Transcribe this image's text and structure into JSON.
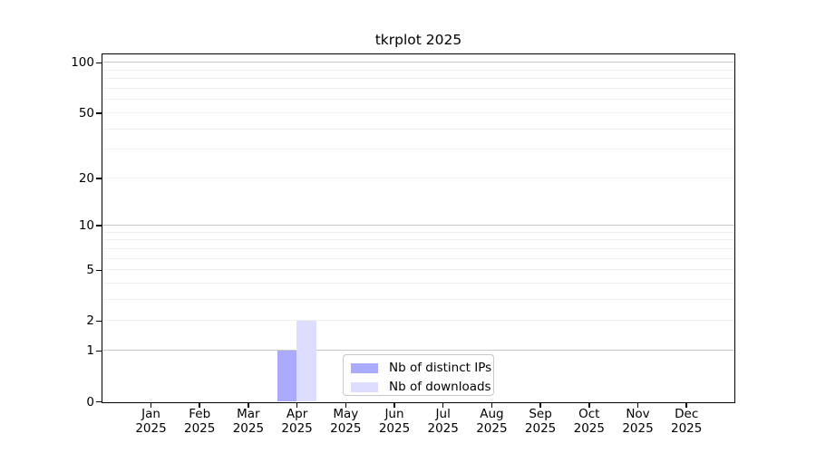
{
  "figure": {
    "title": "tkrplot 2025"
  },
  "chart_data": {
    "type": "bar",
    "title": "tkrplot 2025",
    "xlabel": "",
    "ylabel": "",
    "year_label": "2025",
    "categories": [
      "Jan",
      "Feb",
      "Mar",
      "Apr",
      "May",
      "Jun",
      "Jul",
      "Aug",
      "Sep",
      "Oct",
      "Nov",
      "Dec"
    ],
    "series": [
      {
        "name": "Nb of distinct IPs",
        "color": "#aaaaff",
        "values": [
          0,
          0,
          0,
          1,
          0,
          0,
          0,
          0,
          0,
          0,
          0,
          0
        ]
      },
      {
        "name": "Nb of downloads",
        "color": "#ddddff",
        "values": [
          0,
          0,
          0,
          2,
          0,
          0,
          0,
          0,
          0,
          0,
          0,
          0
        ]
      }
    ],
    "y_scale": "log1p",
    "y_ticks": [
      0,
      1,
      2,
      5,
      10,
      20,
      50,
      100
    ],
    "y_minor_gridlines": [
      2,
      3,
      4,
      5,
      6,
      7,
      8,
      9,
      20,
      30,
      40,
      50,
      60,
      70,
      80,
      90
    ],
    "y_major_gridlines": [
      1,
      10,
      100
    ],
    "ylim": [
      0,
      113
    ],
    "grid": true,
    "legend_position": "lower center"
  },
  "colors": {
    "background": "#ffffff",
    "axis": "#000000",
    "minor_grid": "#f0f0f0",
    "major_grid": "#c6c6c6",
    "legend_border": "#c9c9c9"
  }
}
